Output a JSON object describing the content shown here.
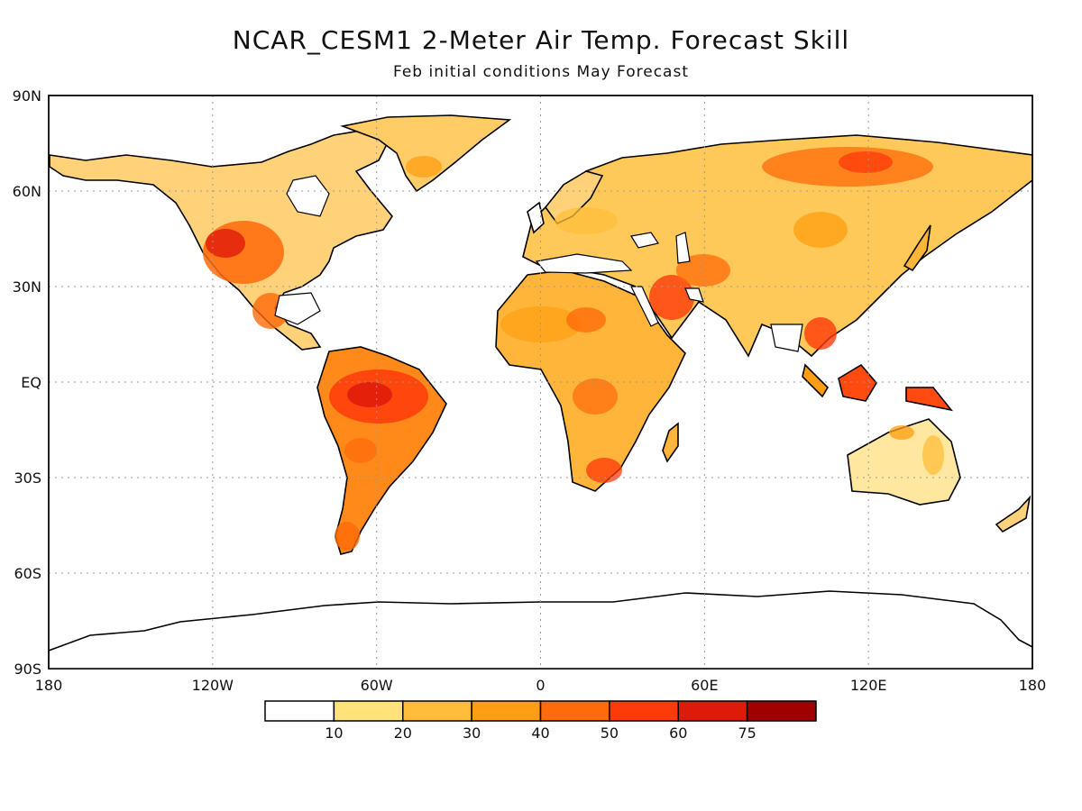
{
  "title": "NCAR_CESM1 2-Meter Air Temp. Forecast Skill",
  "subtitle": "Feb initial conditions  May Forecast",
  "lat_labels": [
    "90N",
    "60N",
    "30N",
    "EQ",
    "30S",
    "60S",
    "90S"
  ],
  "lon_labels": [
    "180",
    "120W",
    "60W",
    "0",
    "60E",
    "120E",
    "180"
  ],
  "legend": {
    "labels": [
      "10",
      "20",
      "30",
      "40",
      "50",
      "60",
      "75"
    ],
    "colors": [
      "#ffffff",
      "#ffe37a",
      "#ffbd3a",
      "#ff9e12",
      "#ff6a0a",
      "#ff3a0a",
      "#e01a0a",
      "#a00000"
    ]
  },
  "colors": {
    "land_outline": "#000000",
    "grid": "#999999"
  }
}
